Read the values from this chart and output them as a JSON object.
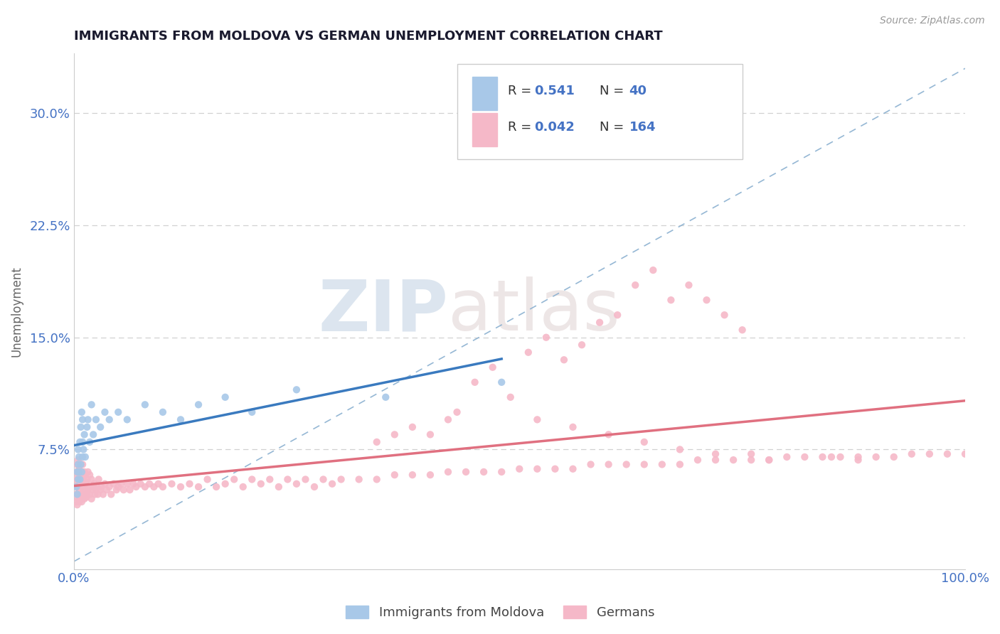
{
  "title": "IMMIGRANTS FROM MOLDOVA VS GERMAN UNEMPLOYMENT CORRELATION CHART",
  "source": "Source: ZipAtlas.com",
  "ylabel": "Unemployment",
  "yticks": [
    "7.5%",
    "15.0%",
    "22.5%",
    "30.0%"
  ],
  "ytick_vals": [
    0.075,
    0.15,
    0.225,
    0.3
  ],
  "xlim": [
    0.0,
    1.0
  ],
  "ylim": [
    -0.005,
    0.34
  ],
  "scatter_moldova_color": "#a8c8e8",
  "scatter_german_color": "#f5b8c8",
  "line_moldova_color": "#3a7abf",
  "line_german_color": "#e07080",
  "diag_color": "#8ab0d0",
  "background_color": "#ffffff",
  "grid_color": "#cccccc",
  "title_color": "#1a1a2e",
  "axis_label_color": "#666666",
  "r_value_color": "#4472c4",
  "watermark_color": "#d0dce8",
  "moldova_x": [
    0.003,
    0.004,
    0.004,
    0.005,
    0.005,
    0.005,
    0.006,
    0.006,
    0.007,
    0.007,
    0.008,
    0.008,
    0.009,
    0.009,
    0.01,
    0.01,
    0.01,
    0.011,
    0.012,
    0.013,
    0.015,
    0.016,
    0.018,
    0.02,
    0.022,
    0.025,
    0.03,
    0.035,
    0.04,
    0.05,
    0.06,
    0.08,
    0.1,
    0.12,
    0.14,
    0.17,
    0.2,
    0.25,
    0.35,
    0.48
  ],
  "moldova_y": [
    0.05,
    0.045,
    0.06,
    0.055,
    0.065,
    0.075,
    0.06,
    0.07,
    0.055,
    0.08,
    0.065,
    0.09,
    0.06,
    0.1,
    0.07,
    0.08,
    0.095,
    0.075,
    0.085,
    0.07,
    0.09,
    0.095,
    0.08,
    0.105,
    0.085,
    0.095,
    0.09,
    0.1,
    0.095,
    0.1,
    0.095,
    0.105,
    0.1,
    0.095,
    0.105,
    0.11,
    0.1,
    0.115,
    0.11,
    0.12
  ],
  "german_x_low": [
    0.003,
    0.003,
    0.003,
    0.004,
    0.004,
    0.004,
    0.004,
    0.005,
    0.005,
    0.005,
    0.005,
    0.006,
    0.006,
    0.006,
    0.006,
    0.007,
    0.007,
    0.007,
    0.008,
    0.008,
    0.008,
    0.009,
    0.009,
    0.009,
    0.01,
    0.01,
    0.01,
    0.01,
    0.011,
    0.011,
    0.012,
    0.012,
    0.012,
    0.013,
    0.013,
    0.014,
    0.014,
    0.015,
    0.015,
    0.016,
    0.016,
    0.017,
    0.018,
    0.018,
    0.019,
    0.02,
    0.02,
    0.021,
    0.022,
    0.023,
    0.024,
    0.025,
    0.026,
    0.027,
    0.028,
    0.03,
    0.031,
    0.033,
    0.035,
    0.037,
    0.04,
    0.042,
    0.045,
    0.048,
    0.05,
    0.053,
    0.056,
    0.06,
    0.063,
    0.067,
    0.07,
    0.075,
    0.08,
    0.085,
    0.09,
    0.095,
    0.1,
    0.11,
    0.12,
    0.13,
    0.14,
    0.15,
    0.16,
    0.17,
    0.18,
    0.19,
    0.2,
    0.21,
    0.22,
    0.23,
    0.24,
    0.25,
    0.26,
    0.27,
    0.28,
    0.29,
    0.3,
    0.32,
    0.34,
    0.36,
    0.38,
    0.4,
    0.42,
    0.44,
    0.46,
    0.48,
    0.5,
    0.52,
    0.54,
    0.56,
    0.58,
    0.6,
    0.62,
    0.64,
    0.66,
    0.68,
    0.7,
    0.72,
    0.74,
    0.76,
    0.78,
    0.8,
    0.82,
    0.84,
    0.86,
    0.88,
    0.9,
    0.92,
    0.94,
    0.96,
    0.98,
    1.0
  ],
  "german_y_low": [
    0.04,
    0.045,
    0.055,
    0.038,
    0.05,
    0.06,
    0.065,
    0.042,
    0.052,
    0.058,
    0.068,
    0.04,
    0.048,
    0.055,
    0.062,
    0.043,
    0.052,
    0.06,
    0.045,
    0.055,
    0.065,
    0.04,
    0.05,
    0.06,
    0.042,
    0.05,
    0.058,
    0.065,
    0.045,
    0.055,
    0.042,
    0.052,
    0.06,
    0.048,
    0.058,
    0.043,
    0.053,
    0.045,
    0.055,
    0.048,
    0.06,
    0.05,
    0.045,
    0.058,
    0.05,
    0.042,
    0.055,
    0.048,
    0.05,
    0.052,
    0.045,
    0.048,
    0.05,
    0.045,
    0.055,
    0.048,
    0.05,
    0.045,
    0.052,
    0.048,
    0.05,
    0.045,
    0.052,
    0.048,
    0.05,
    0.052,
    0.048,
    0.052,
    0.048,
    0.052,
    0.05,
    0.052,
    0.05,
    0.052,
    0.05,
    0.052,
    0.05,
    0.052,
    0.05,
    0.052,
    0.05,
    0.055,
    0.05,
    0.052,
    0.055,
    0.05,
    0.055,
    0.052,
    0.055,
    0.05,
    0.055,
    0.052,
    0.055,
    0.05,
    0.055,
    0.052,
    0.055,
    0.055,
    0.055,
    0.058,
    0.058,
    0.058,
    0.06,
    0.06,
    0.06,
    0.06,
    0.062,
    0.062,
    0.062,
    0.062,
    0.065,
    0.065,
    0.065,
    0.065,
    0.065,
    0.065,
    0.068,
    0.068,
    0.068,
    0.068,
    0.068,
    0.07,
    0.07,
    0.07,
    0.07,
    0.07,
    0.07,
    0.07,
    0.072,
    0.072,
    0.072,
    0.072
  ],
  "german_outlier_x": [
    0.43,
    0.45,
    0.47,
    0.49,
    0.51,
    0.53,
    0.55,
    0.57,
    0.59,
    0.61,
    0.63,
    0.65,
    0.67,
    0.69,
    0.71,
    0.73,
    0.75,
    0.38,
    0.4,
    0.42,
    0.36,
    0.34,
    0.85,
    0.88,
    0.78,
    0.76,
    0.72,
    0.68,
    0.64,
    0.6,
    0.56,
    0.52
  ],
  "german_outlier_y": [
    0.1,
    0.12,
    0.13,
    0.11,
    0.14,
    0.15,
    0.135,
    0.145,
    0.16,
    0.165,
    0.185,
    0.195,
    0.175,
    0.185,
    0.175,
    0.165,
    0.155,
    0.09,
    0.085,
    0.095,
    0.085,
    0.08,
    0.07,
    0.068,
    0.068,
    0.072,
    0.072,
    0.075,
    0.08,
    0.085,
    0.09,
    0.095
  ]
}
